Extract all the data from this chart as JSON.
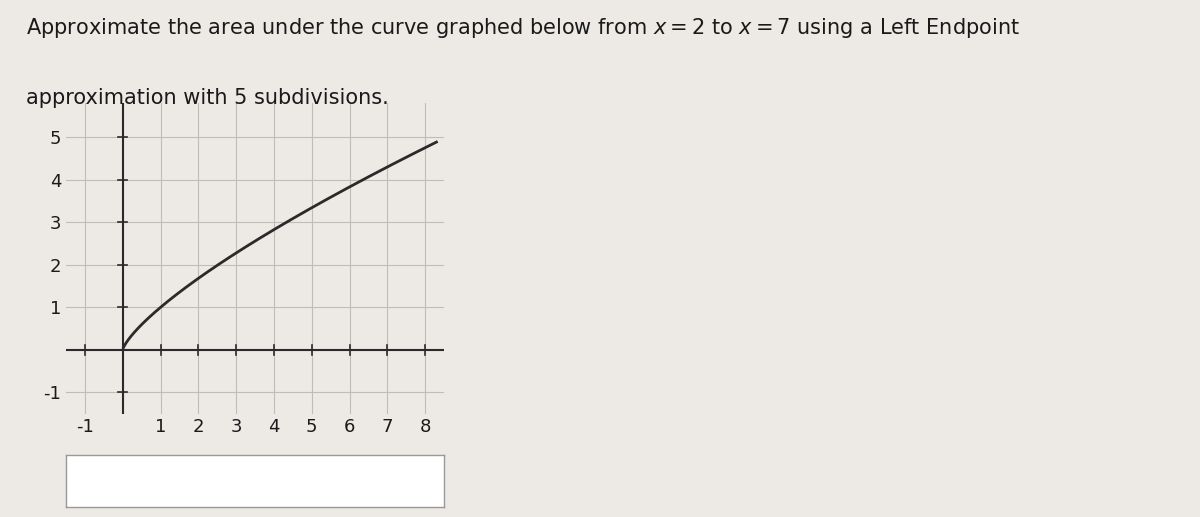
{
  "title_line1": "Approximate the area under the curve graphed below from $x = 2$ to $x = 7$ using a Left Endpoint",
  "title_line2": "approximation with 5 subdivisions.",
  "xlim": [
    -1.5,
    8.5
  ],
  "ylim": [
    -1.5,
    5.8
  ],
  "xticks": [
    -1,
    1,
    2,
    3,
    4,
    5,
    6,
    7,
    8
  ],
  "yticks": [
    -1,
    1,
    2,
    3,
    4,
    5
  ],
  "curve_color": "#2a2a2a",
  "curve_linewidth": 2.0,
  "grid_color": "#c0bdb8",
  "axis_color": "#2a2a2a",
  "background_color": "#edeae6",
  "figure_bg": "#edeae6",
  "text_color": "#1a1a1a",
  "title_fontsize": 15,
  "tick_fontsize": 13,
  "x_curve_start": 0.02,
  "x_curve_end": 8.3,
  "curve_exponent": 0.75
}
